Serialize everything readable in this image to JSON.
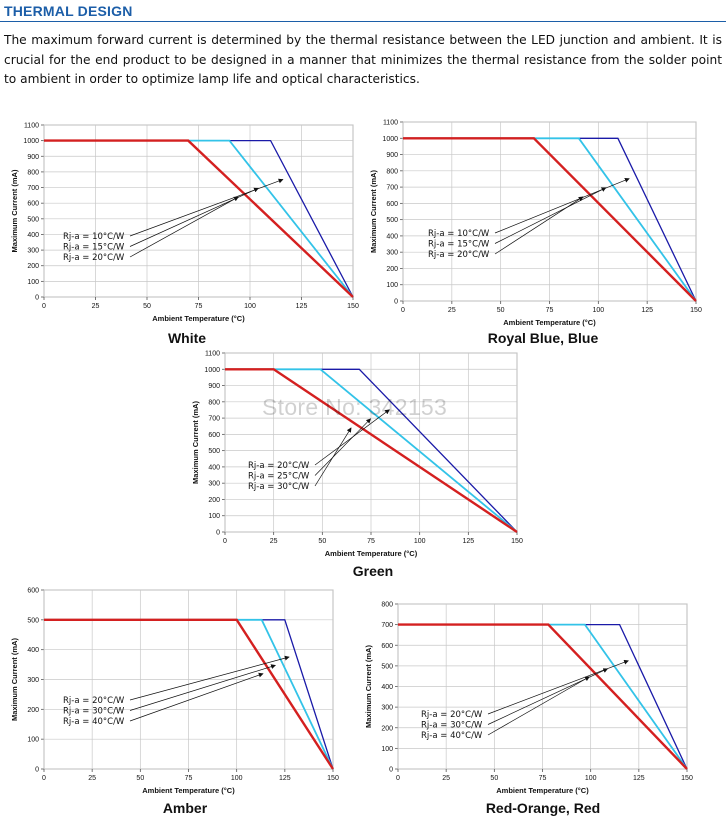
{
  "section_title": "THERMAL DESIGN",
  "intro": "The maximum forward current is determined by the thermal resistance between the LED junction and ambient. It is crucial for the end product to be designed in a manner that minimizes the thermal resistance from the solder point to ambient in order to optimize lamp life and optical characteristics.",
  "watermark": "Store No: 342153",
  "chart_data": [
    {
      "type": "line",
      "title": "White",
      "xlabel": "Ambient Temperature (°C)",
      "ylabel": "Maximum Current (mA)",
      "xlim": [
        0,
        150
      ],
      "ylim": [
        0,
        1100
      ],
      "xticks": [
        0,
        25,
        50,
        75,
        100,
        125,
        150
      ],
      "yticks": [
        0,
        100,
        200,
        300,
        400,
        500,
        600,
        700,
        800,
        900,
        1000,
        1100
      ],
      "grid": true,
      "series": [
        {
          "name": "Rj-a = 10°C/W",
          "color": "#1a1aa8",
          "x": [
            0,
            110,
            150
          ],
          "y": [
            1000,
            1000,
            0
          ]
        },
        {
          "name": "Rj-a = 15°C/W",
          "color": "#33c3e8",
          "x": [
            0,
            90,
            150
          ],
          "y": [
            1000,
            1000,
            0
          ]
        },
        {
          "name": "Rj-a = 20°C/W",
          "color": "#d42020",
          "x": [
            0,
            70,
            150
          ],
          "y": [
            1000,
            1000,
            0
          ]
        }
      ]
    },
    {
      "type": "line",
      "title": "Royal Blue, Blue",
      "xlabel": "Ambient Temperature (°C)",
      "ylabel": "Maximum Current (mA)",
      "xlim": [
        0,
        150
      ],
      "ylim": [
        0,
        1100
      ],
      "xticks": [
        0,
        25,
        50,
        75,
        100,
        125,
        150
      ],
      "yticks": [
        0,
        100,
        200,
        300,
        400,
        500,
        600,
        700,
        800,
        900,
        1000,
        1100
      ],
      "grid": true,
      "series": [
        {
          "name": "Rj-a = 10°C/W",
          "color": "#1a1aa8",
          "x": [
            0,
            110,
            150
          ],
          "y": [
            1000,
            1000,
            0
          ]
        },
        {
          "name": "Rj-a = 15°C/W",
          "color": "#33c3e8",
          "x": [
            0,
            90,
            150
          ],
          "y": [
            1000,
            1000,
            0
          ]
        },
        {
          "name": "Rj-a = 20°C/W",
          "color": "#d42020",
          "x": [
            0,
            67,
            150
          ],
          "y": [
            1000,
            1000,
            0
          ]
        }
      ]
    },
    {
      "type": "line",
      "title": "Green",
      "xlabel": "Ambient Temperature (°C)",
      "ylabel": "Maximum Current (mA)",
      "xlim": [
        0,
        150
      ],
      "ylim": [
        0,
        1100
      ],
      "xticks": [
        0,
        25,
        50,
        75,
        100,
        125,
        150
      ],
      "yticks": [
        0,
        100,
        200,
        300,
        400,
        500,
        600,
        700,
        800,
        900,
        1000,
        1100
      ],
      "grid": true,
      "series": [
        {
          "name": "Rj-a = 20°C/W",
          "color": "#1a1aa8",
          "x": [
            0,
            69,
            150
          ],
          "y": [
            1000,
            1000,
            0
          ]
        },
        {
          "name": "Rj-a = 25°C/W",
          "color": "#33c3e8",
          "x": [
            0,
            49,
            150
          ],
          "y": [
            1000,
            1000,
            0
          ]
        },
        {
          "name": "Rj-a = 30°C/W",
          "color": "#d42020",
          "x": [
            0,
            25,
            150
          ],
          "y": [
            1000,
            1000,
            0
          ]
        }
      ]
    },
    {
      "type": "line",
      "title": "Amber",
      "xlabel": "Ambient Temperature (°C)",
      "ylabel": "Maximum Current (mA)",
      "xlim": [
        0,
        150
      ],
      "ylim": [
        0,
        600
      ],
      "xticks": [
        0,
        25,
        50,
        75,
        100,
        125,
        150
      ],
      "yticks": [
        0,
        100,
        200,
        300,
        400,
        500,
        600
      ],
      "grid": true,
      "series": [
        {
          "name": "Rj-a = 20°C/W",
          "color": "#1a1aa8",
          "x": [
            0,
            125,
            150
          ],
          "y": [
            500,
            500,
            0
          ]
        },
        {
          "name": "Rj-a = 30°C/W",
          "color": "#33c3e8",
          "x": [
            0,
            113,
            150
          ],
          "y": [
            500,
            500,
            0
          ]
        },
        {
          "name": "Rj-a = 40°C/W",
          "color": "#d42020",
          "x": [
            0,
            100,
            150
          ],
          "y": [
            500,
            500,
            0
          ]
        }
      ]
    },
    {
      "type": "line",
      "title": "Red-Orange, Red",
      "xlabel": "Ambient Temperature (°C)",
      "ylabel": "Maximum Current (mA)",
      "xlim": [
        0,
        150
      ],
      "ylim": [
        0,
        800
      ],
      "xticks": [
        0,
        25,
        50,
        75,
        100,
        125,
        150
      ],
      "yticks": [
        0,
        100,
        200,
        300,
        400,
        500,
        600,
        700,
        800
      ],
      "grid": true,
      "series": [
        {
          "name": "Rj-a = 20°C/W",
          "color": "#1a1aa8",
          "x": [
            0,
            115,
            150
          ],
          "y": [
            700,
            700,
            0
          ]
        },
        {
          "name": "Rj-a = 30°C/W",
          "color": "#33c3e8",
          "x": [
            0,
            97,
            150
          ],
          "y": [
            700,
            700,
            0
          ]
        },
        {
          "name": "Rj-a = 40°C/W",
          "color": "#d42020",
          "x": [
            0,
            78,
            150
          ],
          "y": [
            700,
            700,
            0
          ]
        }
      ]
    }
  ]
}
